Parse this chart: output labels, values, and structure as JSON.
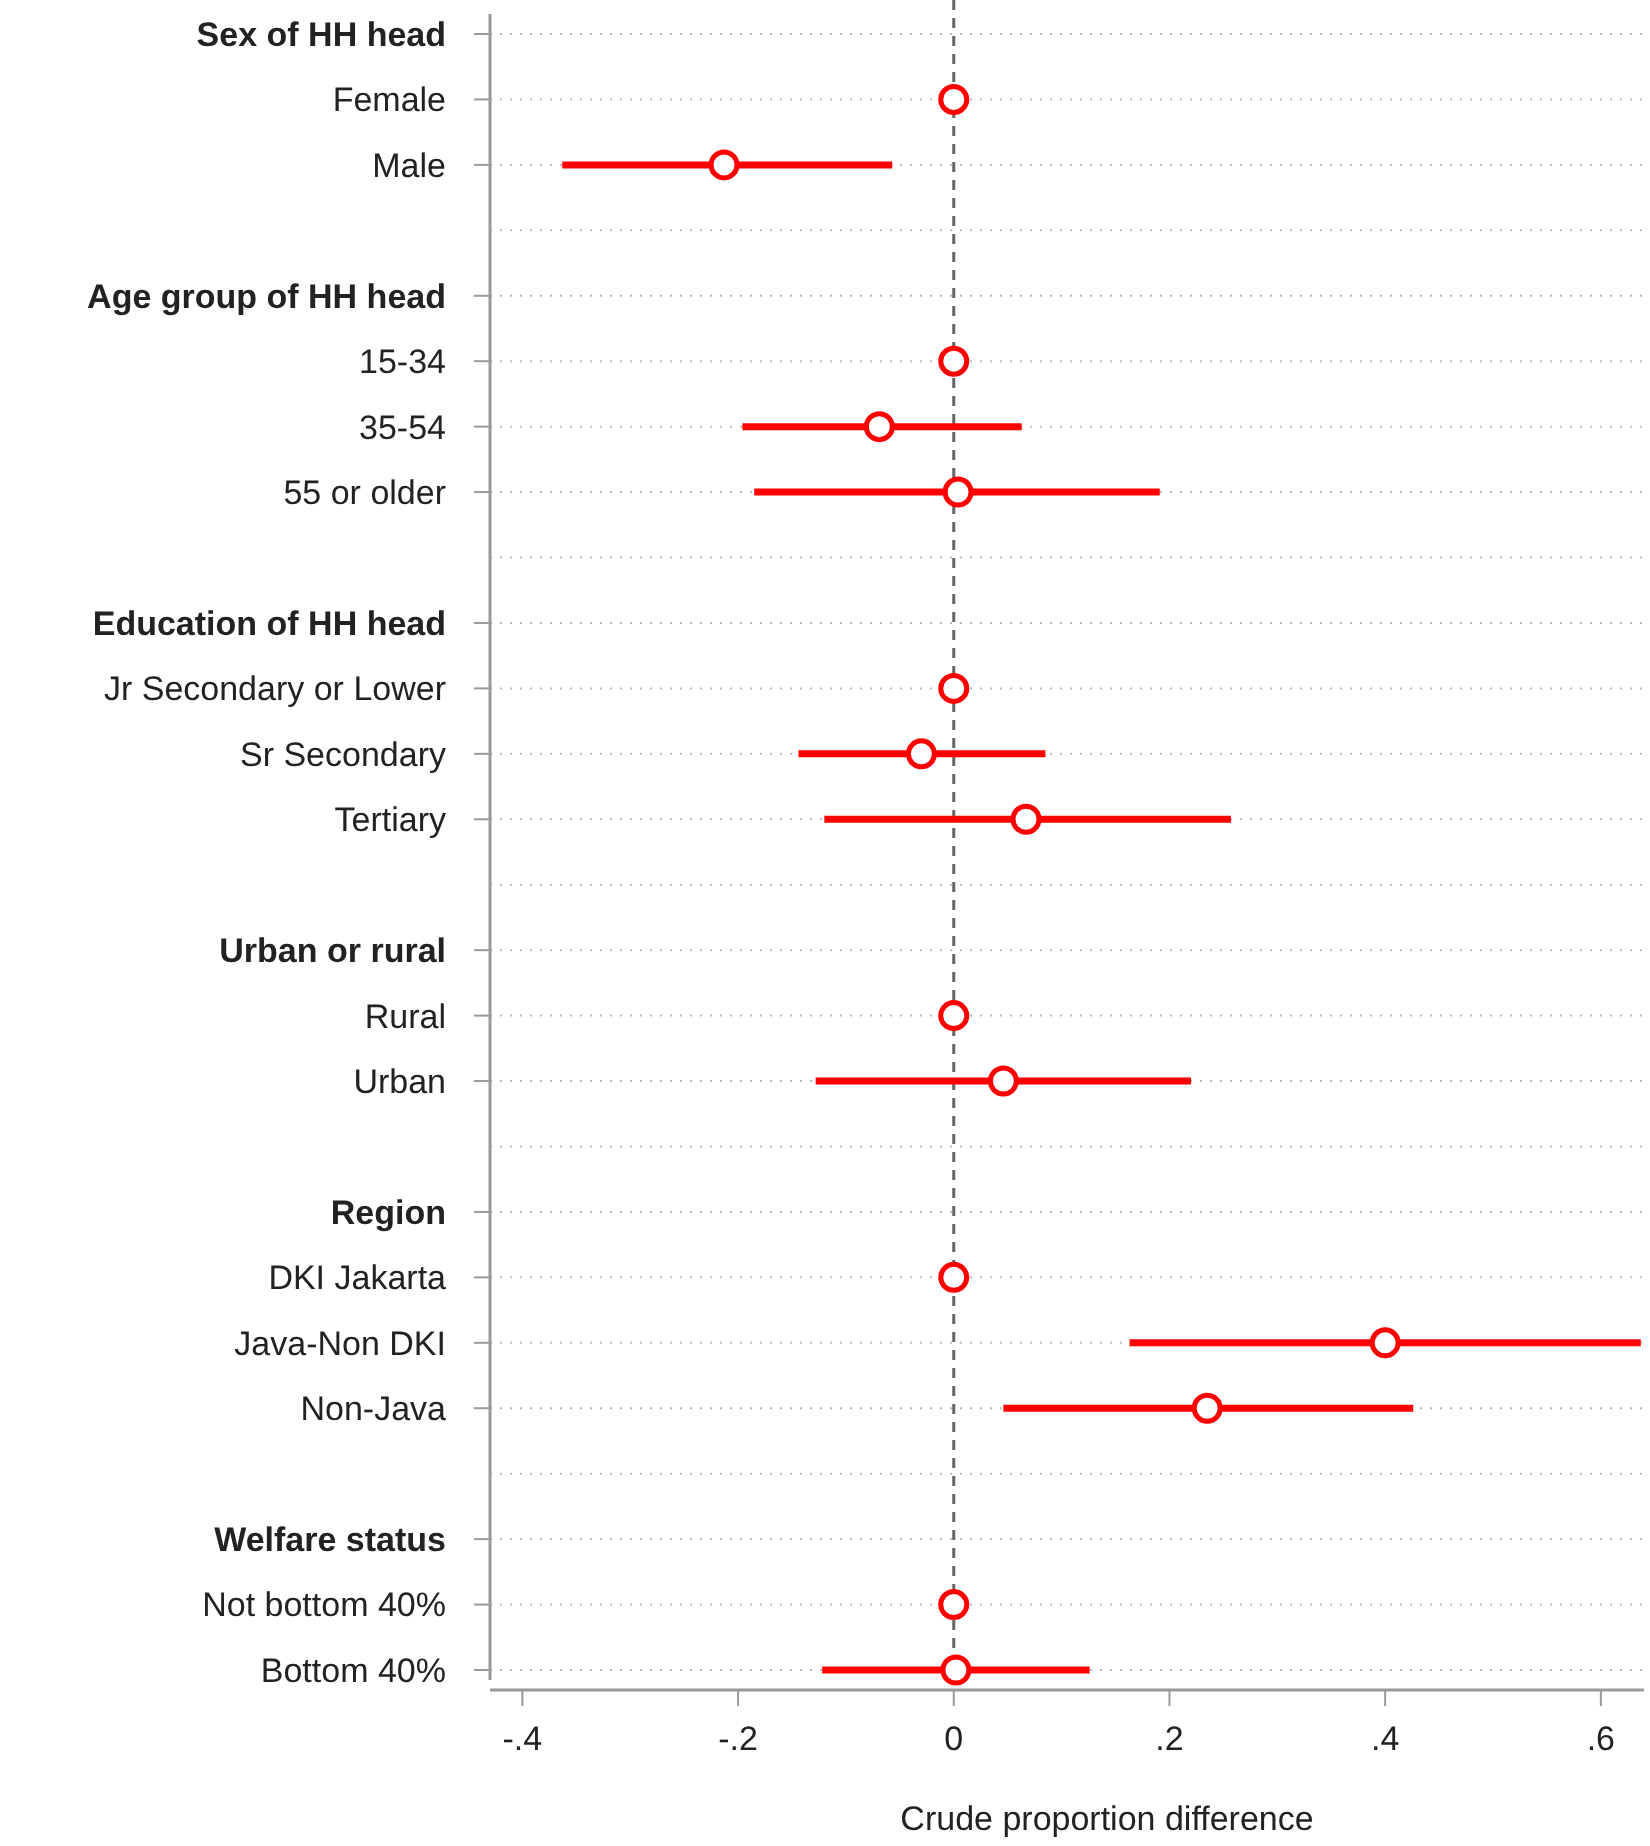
{
  "chart_data": {
    "type": "scatter",
    "orientation": "horizontal",
    "xlabel": "Crude proportion difference",
    "categories": [
      "Sex of HH head",
      "Female",
      "Male",
      null,
      "Age group of HH head",
      "15-34",
      "35-54",
      "55 or older",
      null,
      "Education of HH head",
      "Jr Secondary or Lower",
      "Sr Secondary",
      "Tertiary",
      null,
      "Urban or rural",
      "Rural",
      "Urban",
      null,
      "Region",
      "DKI Jakarta",
      "Java-Non DKI",
      "Non-Java",
      null,
      "Welfare status",
      "Not bottom 40%",
      "Bottom 40%"
    ],
    "series": [
      {
        "color": "#ff0000",
        "values": [
          null,
          0,
          -0.213,
          null,
          null,
          0,
          -0.069,
          0.004,
          null,
          null,
          0,
          -0.03,
          0.067,
          null,
          null,
          0,
          0.046,
          null,
          null,
          0,
          0.4,
          0.235,
          null,
          null,
          0,
          0.002
        ],
        "errors": [
          null,
          null,
          [
            -0.363,
            -0.057
          ],
          null,
          null,
          null,
          [
            -0.196,
            0.063
          ],
          [
            -0.185,
            0.191
          ],
          null,
          null,
          null,
          [
            -0.144,
            0.085
          ],
          [
            -0.12,
            0.257
          ],
          null,
          null,
          null,
          [
            -0.128,
            0.22
          ],
          null,
          null,
          null,
          [
            0.163,
            0.637
          ],
          [
            0.046,
            0.426
          ],
          null,
          null,
          null,
          [
            -0.122,
            0.126
          ]
        ]
      }
    ],
    "xlim": [
      -0.43,
      0.64
    ],
    "xticks": [
      {
        "value": -0.4,
        "label": "-.4"
      },
      {
        "value": -0.2,
        "label": "-.2"
      },
      0,
      {
        "value": 0.2,
        "label": ".2"
      },
      {
        "value": 0.4,
        "label": ".4"
      },
      {
        "value": 0.6,
        "label": ".6"
      }
    ],
    "ref_lines": [
      {
        "axis": "x",
        "value": 0,
        "color": "#666666",
        "line_style": "dashed"
      }
    ],
    "grid": "y",
    "marker": "circle"
  }
}
